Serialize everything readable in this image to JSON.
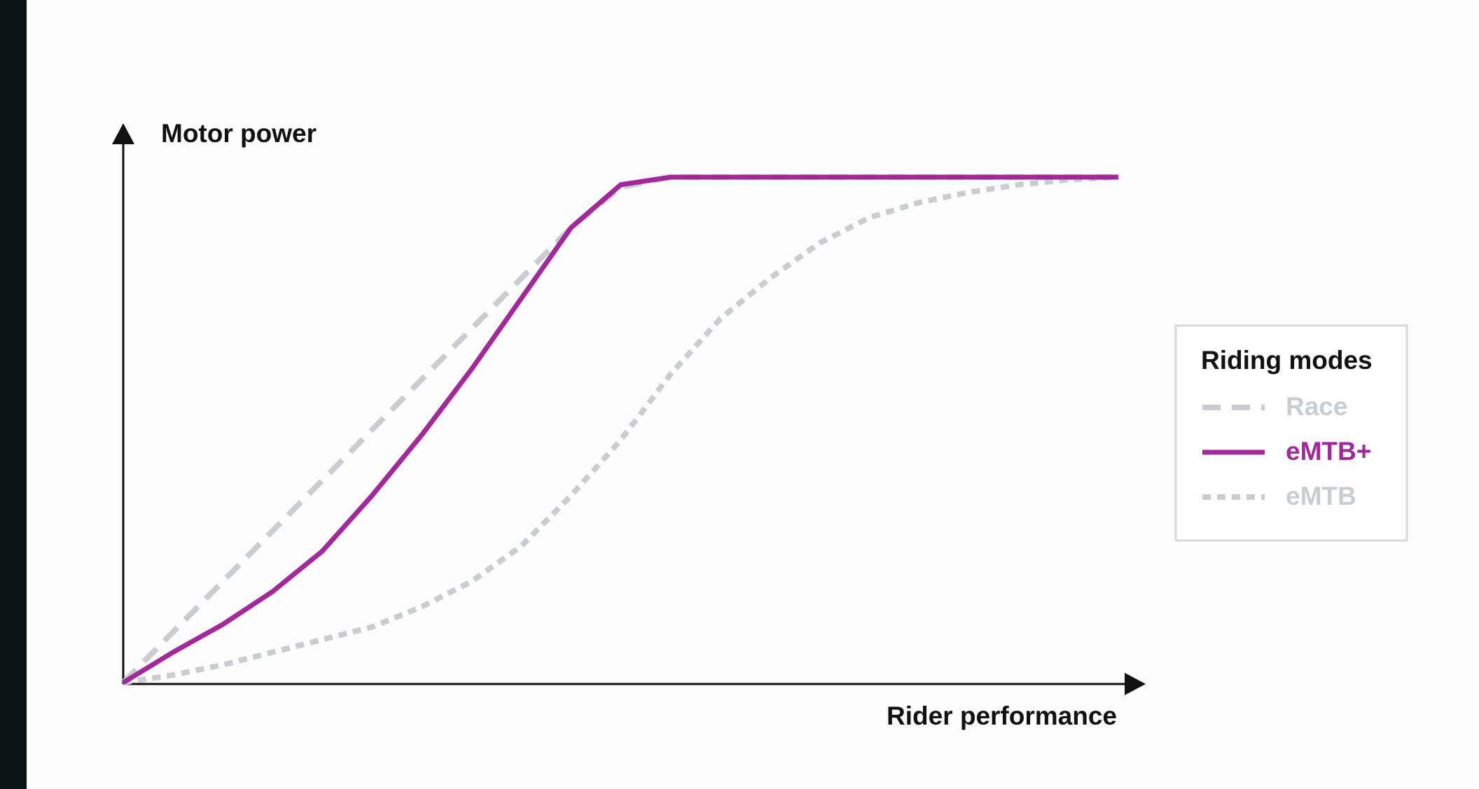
{
  "chart_data": {
    "type": "line",
    "x_label": "Rider performance",
    "y_label": "Motor power",
    "legend_title": "Riding modes",
    "x": [
      0,
      5,
      10,
      15,
      20,
      25,
      30,
      35,
      40,
      45,
      50,
      55,
      60,
      65,
      70,
      75,
      80,
      85,
      90,
      95,
      100
    ],
    "xlim": [
      0,
      100
    ],
    "ylim": [
      0,
      100
    ],
    "series": [
      {
        "name": "Race",
        "color": "#c9cdd1",
        "dash": "dashed",
        "values": [
          0,
          10,
          20,
          30,
          40,
          50,
          60,
          70,
          80,
          90,
          98,
          100,
          100,
          100,
          100,
          100,
          100,
          100,
          100,
          100,
          100
        ]
      },
      {
        "name": "eMTB+",
        "color": "#a2289b",
        "dash": "solid",
        "values": [
          0,
          6,
          11.5,
          18,
          26,
          37,
          49,
          62,
          76,
          90,
          98.5,
          100,
          100,
          100,
          100,
          100,
          100,
          100,
          100,
          100,
          100
        ]
      },
      {
        "name": "eMTB",
        "color": "#c9cdd1",
        "dash": "dotted",
        "values": [
          0,
          1.5,
          3.5,
          6,
          8.5,
          11,
          15,
          20,
          27,
          37,
          48,
          61,
          72,
          80,
          87,
          92,
          95,
          97,
          98.5,
          99.5,
          100
        ]
      }
    ]
  }
}
